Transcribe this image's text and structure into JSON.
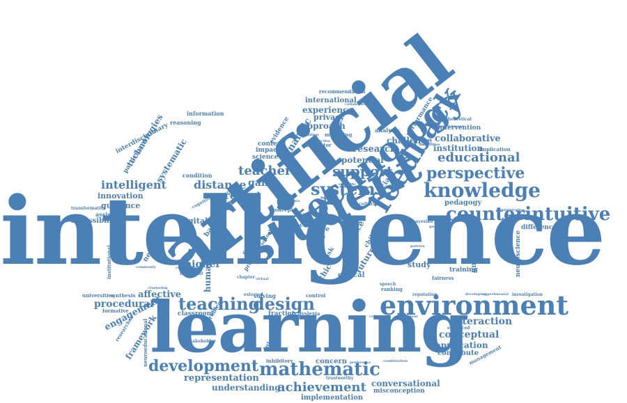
{
  "colors": {
    "word": "#4a80b5",
    "word_light": "#6a9bca",
    "background": "#ffffff"
  },
  "words": {
    "intelligence": "intelligence",
    "artificial": "artificial",
    "learning": "learning",
    "student": "student",
    "technology": "technology",
    "feedback": "feedback",
    "environment": "environment",
    "knowledge": "knowledge",
    "counterintuitive": "counterintuitive",
    "mathematic": "mathematic",
    "development": "development",
    "teaching": "teaching",
    "design": "design",
    "system": "system",
    "perspective": "perspective",
    "educational": "educational",
    "support": "support",
    "teacher": "teacher",
    "intelligent": "intelligent",
    "distance": "distance",
    "report": "report",
    "game": "game",
    "potential": "potential",
    "research": "research",
    "challenge": "challenge",
    "collaborative": "collaborative",
    "institution": "institution",
    "analytic": "analytic",
    "experience": "experience",
    "approach": "approach",
    "privacy": "privacy",
    "international": "international",
    "interaction": "interaction",
    "conceptual": "conceptual",
    "application": "application",
    "contribute": "contribute",
    "achievement": "achievement",
    "representation": "representation",
    "understanding": "understanding",
    "conversational": "conversational",
    "implementation": "implementation",
    "misconception": "misconception",
    "concern": "concern",
    "procedural": "procedural",
    "affective": "affective",
    "engagement": "engagement",
    "framework": "framework",
    "higher": "higher",
    "human": "human",
    "digital": "digital",
    "innovation": "innovation",
    "guidance": "guidance",
    "accessibility": "accessibility",
    "technologies": "technologies",
    "systematic": "systematic",
    "participant": "participant",
    "interdisciplinary": "interdisciplinary",
    "reasoning": "reasoning",
    "information": "information",
    "recommendation": "recommendation",
    "collaboration": "collaboration",
    "performance": "performance",
    "intervention": "intervention",
    "implication": "implication",
    "theoretical": "theoretical",
    "analysis": "analysis",
    "modelling": "modelling",
    "indicator": "indicator",
    "context": "context",
    "science": "science",
    "impact": "impact",
    "evidence": "evidence",
    "condition": "condition",
    "data": "data",
    "pedagogy": "pedagogy",
    "difference": "difference",
    "neuroscience": "neuroscience",
    "university": "university",
    "study": "study",
    "training": "training",
    "fairness": "fairness",
    "ethical": "ethical",
    "ranking": "ranking",
    "more": "more",
    "group": "group",
    "year": "year",
    "affect": "affect",
    "survey": "survey",
    "concept": "concept",
    "paper": "paper",
    "literacy": "literacy",
    "social": "social",
    "future": "future",
    "practice": "practice",
    "ethic": "ethic",
    "task": "task",
    "child": "child",
    "credit": "credit",
    "critical": "critical",
    "project": "project",
    "based": "based",
    "network": "network",
    "institutional": "institutional",
    "universities": "universities",
    "synthesis": "synthesis",
    "formative": "formative",
    "assistant": "assistant",
    "transformative": "transformative",
    "researcher": "researcher",
    "neuroeducational": "neuroeducational",
    "stakeholder": "stakeholder",
    "classroom": "classroom",
    "problem": "problem",
    "solving": "solving",
    "fraction": "fraction",
    "dyslexia": "dyslexia",
    "control": "control",
    "external": "external",
    "tutoring": "tutoring",
    "inhibitory": "inhibitory",
    "trustworthy": "trustworthy",
    "preference": "preference",
    "combination": "combination",
    "enhanced": "enhanced",
    "management": "management",
    "investigation": "investigation",
    "developing": "developing",
    "reputation": "reputation",
    "speech": "speech",
    "criterion": "criterion",
    "behaviour": "behaviour",
    "bayesian": "bayesian",
    "cultural": "cultural",
    "school": "school",
    "review": "review",
    "cognitive": "cognitive",
    "literature": "literature",
    "important": "important",
    "curriculum": "curriculum",
    "chapter": "chapter",
    "commonly": "commonly",
    "clustering": "clustering",
    "virtual": "virtual",
    "scientific": "scientific",
    "change": "change",
    "prisma": "prisma",
    "recognition": "recognition",
    "interactive": "interactive",
    "question": "question",
    "administrative": "administrative",
    "enrichment": "enrichment",
    "disabilities": "disabilities",
    "pattern": "pattern",
    "experimental": "experimental"
  }
}
